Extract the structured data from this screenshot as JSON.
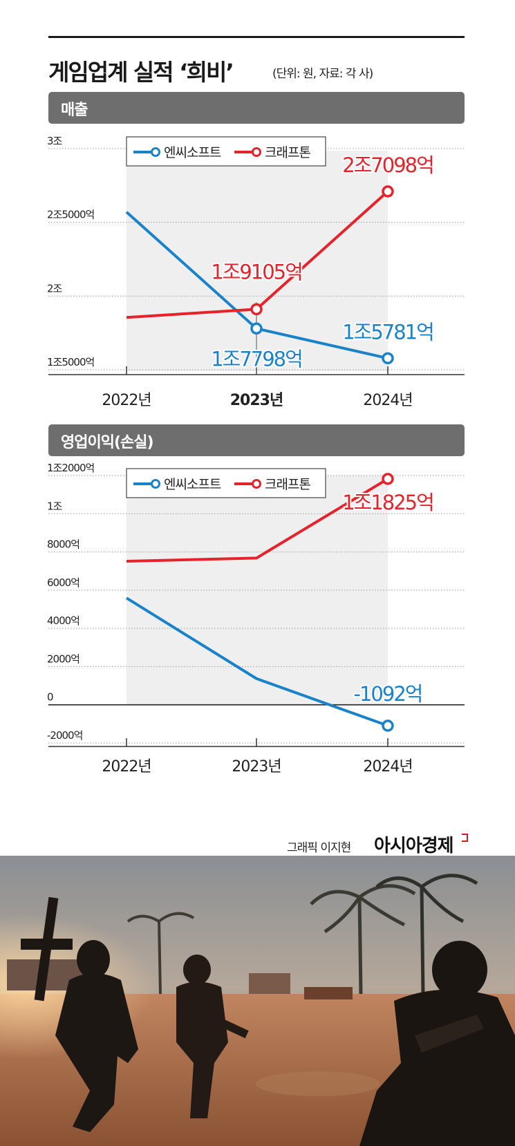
{
  "header": {
    "title": "게임업계 실적 ‘희비’",
    "subtitle": "(단위: 원, 자료: 각 사)"
  },
  "colors": {
    "ncsoft": "#1a82c8",
    "krafton": "#e4232b",
    "section_bar": "#6e6e6e",
    "plot_bg": "#efefef"
  },
  "chart_data": [
    {
      "type": "line",
      "section_label": "매출",
      "categories": [
        "2022년",
        "2023년",
        "2024년"
      ],
      "highlight_category": "2023년",
      "y_ticks": [
        {
          "value": 1.5,
          "label": "1조5000억"
        },
        {
          "value": 2.0,
          "label": "2조"
        },
        {
          "value": 2.5,
          "label": "2조5000억"
        },
        {
          "value": 3.0,
          "label": "3조"
        }
      ],
      "ylim": [
        1.5,
        3.0
      ],
      "legend": [
        "엔씨소프트",
        "크래프톤"
      ],
      "series": [
        {
          "name": "엔씨소프트",
          "color": "#1a82c8",
          "values": [
            2.57,
            1.7798,
            1.5781
          ],
          "labels": [
            null,
            "1조7798억",
            "1조5781억"
          ]
        },
        {
          "name": "크래프톤",
          "color": "#e4232b",
          "values": [
            1.855,
            1.9105,
            2.7098
          ],
          "labels": [
            null,
            "1조9105억",
            "2조7098억"
          ]
        }
      ]
    },
    {
      "type": "line",
      "section_label": "영업이익(손실)",
      "categories": [
        "2022년",
        "2023년",
        "2024년"
      ],
      "highlight_category": "",
      "y_ticks": [
        {
          "value": -2000,
          "label": "-2000억"
        },
        {
          "value": 0,
          "label": "0"
        },
        {
          "value": 2000,
          "label": "2000억"
        },
        {
          "value": 4000,
          "label": "4000억"
        },
        {
          "value": 6000,
          "label": "6000억"
        },
        {
          "value": 8000,
          "label": "8000억"
        },
        {
          "value": 10000,
          "label": "1조"
        },
        {
          "value": 12000,
          "label": "1조2000억"
        }
      ],
      "ylim": [
        -2000,
        12000
      ],
      "legend": [
        "엔씨소프트",
        "크래프톤"
      ],
      "series": [
        {
          "name": "엔씨소프트",
          "color": "#1a82c8",
          "values": [
            5590,
            1373,
            -1092
          ],
          "labels": [
            null,
            null,
            "-1092억"
          ]
        },
        {
          "name": "크래프톤",
          "color": "#e4232b",
          "values": [
            7516,
            7680,
            11825
          ],
          "labels": [
            null,
            null,
            "1조1825억"
          ]
        }
      ]
    }
  ],
  "footer": {
    "credit": "그래픽 이지현",
    "brand": "아시아경제"
  },
  "photo": {
    "description_icon": "soldiers-running-photo"
  }
}
